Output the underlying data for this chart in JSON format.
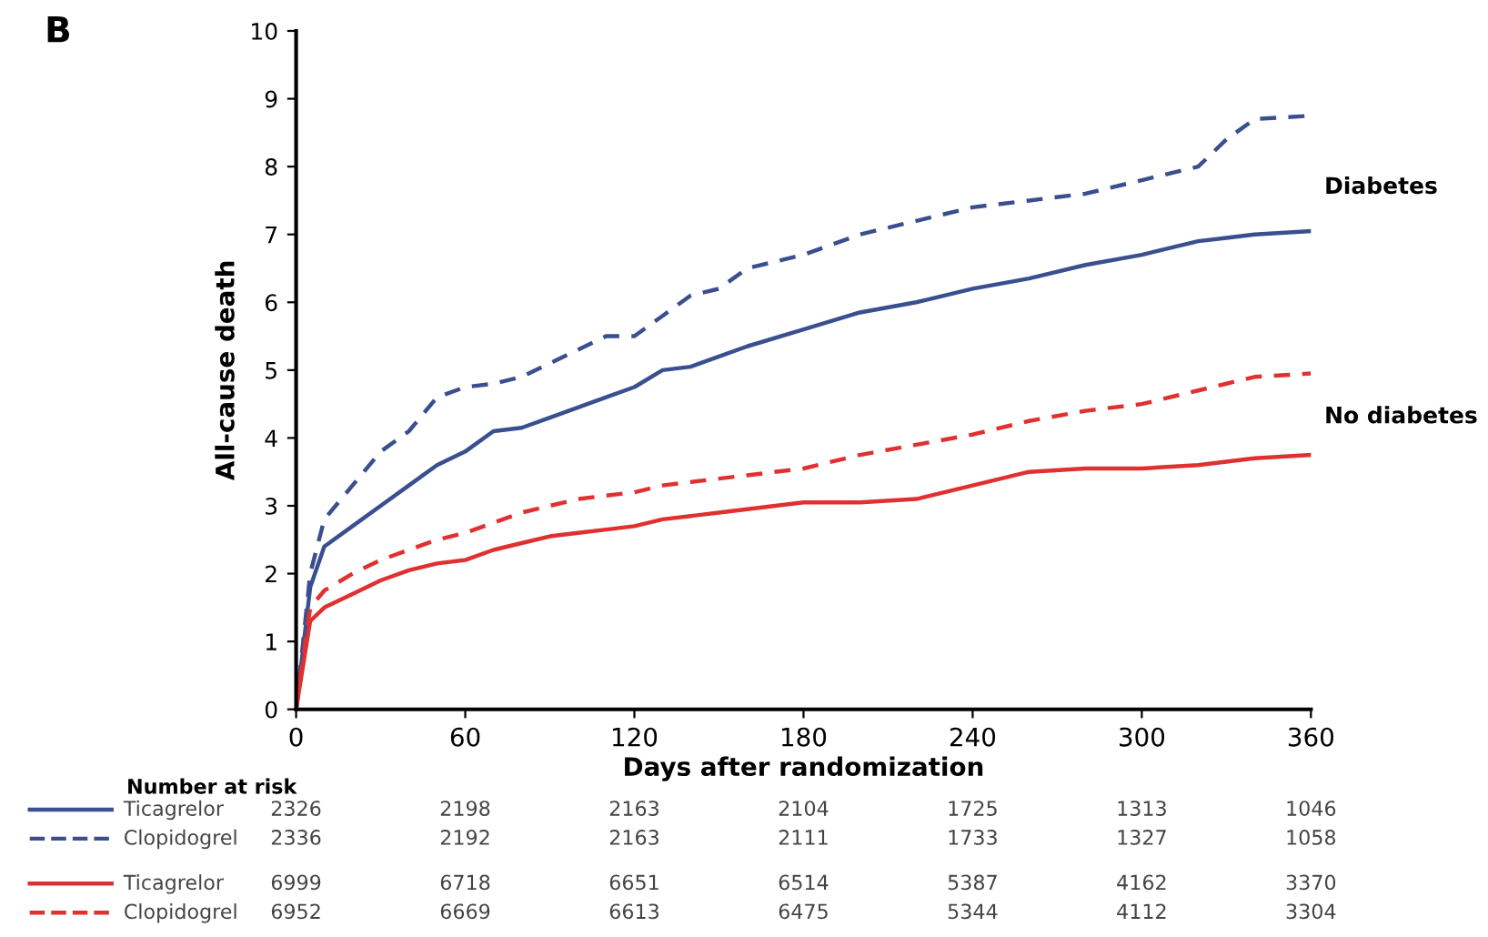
{
  "chart_data": {
    "type": "line",
    "xlabel": "Days after randomization",
    "ylabel": "All-cause death",
    "xlim": [
      0,
      360
    ],
    "xticks": [
      0,
      60,
      120,
      180,
      240,
      300,
      360
    ],
    "ylim": [
      0,
      10
    ],
    "yticks": [
      0,
      1,
      2,
      3,
      4,
      5,
      6,
      7,
      8,
      9,
      10
    ],
    "grid": false,
    "legend": "bottom left",
    "x": [
      0,
      5,
      10,
      20,
      30,
      40,
      50,
      60,
      70,
      80,
      90,
      100,
      110,
      120,
      130,
      140,
      150,
      160,
      180,
      200,
      220,
      240,
      260,
      280,
      300,
      320,
      330,
      340,
      360
    ],
    "series": [
      {
        "name": "Ticagrelor",
        "color": "#3a4f8f",
        "line_style": "solid",
        "values": [
          0,
          1.8,
          2.4,
          2.7,
          3.0,
          3.3,
          3.6,
          3.8,
          4.1,
          4.15,
          4.3,
          4.45,
          4.6,
          4.75,
          5.0,
          5.05,
          5.2,
          5.35,
          5.6,
          5.85,
          6.0,
          6.2,
          6.35,
          6.55,
          6.7,
          6.9,
          6.95,
          7.0,
          7.05
        ]
      },
      {
        "name": "Clopidogrel",
        "color": "#3a4f8f",
        "line_style": "dashed",
        "values": [
          0,
          2.0,
          2.8,
          3.3,
          3.8,
          4.1,
          4.6,
          4.75,
          4.8,
          4.9,
          5.1,
          5.3,
          5.5,
          5.5,
          5.8,
          6.1,
          6.2,
          6.5,
          6.7,
          7.0,
          7.2,
          7.4,
          7.5,
          7.6,
          7.8,
          8.0,
          8.4,
          8.7,
          8.75
        ]
      },
      {
        "name": "Ticagrelor",
        "color": "#e03030",
        "line_style": "solid",
        "values": [
          0,
          1.3,
          1.5,
          1.7,
          1.9,
          2.05,
          2.15,
          2.2,
          2.35,
          2.45,
          2.55,
          2.6,
          2.65,
          2.7,
          2.8,
          2.85,
          2.9,
          2.95,
          3.05,
          3.05,
          3.1,
          3.3,
          3.5,
          3.55,
          3.55,
          3.6,
          3.65,
          3.7,
          3.75
        ]
      },
      {
        "name": "Clopidogrel",
        "color": "#e03030",
        "line_style": "dashed",
        "values": [
          0,
          1.5,
          1.75,
          2.0,
          2.2,
          2.35,
          2.5,
          2.6,
          2.75,
          2.9,
          3.0,
          3.1,
          3.15,
          3.2,
          3.3,
          3.35,
          3.4,
          3.45,
          3.55,
          3.75,
          3.9,
          4.05,
          4.25,
          4.4,
          4.5,
          4.7,
          4.8,
          4.9,
          4.95
        ]
      }
    ],
    "annotations": [
      "B",
      "Diabetes",
      "No diabetes",
      "Number at risk",
      "2326",
      "2198",
      "2163",
      "2104",
      "1725",
      "1313",
      "1046",
      "2336",
      "2192",
      "2163",
      "2111",
      "1733",
      "1327",
      "1058",
      "6999",
      "6718",
      "6651",
      "6514",
      "5387",
      "4162",
      "3370",
      "6952",
      "6669",
      "6613",
      "6475",
      "5344",
      "4112",
      "3304"
    ]
  }
}
